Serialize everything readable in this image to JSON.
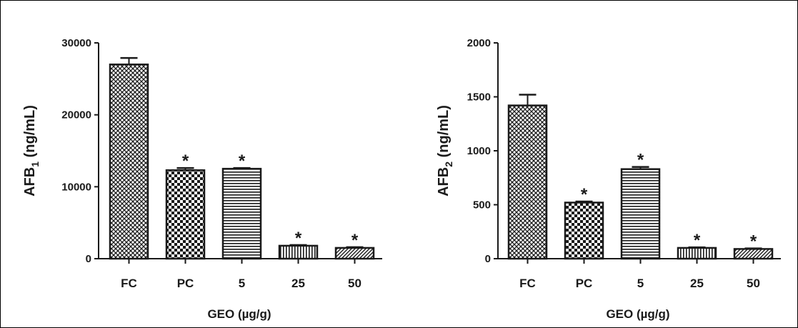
{
  "chart_data": [
    {
      "type": "bar",
      "categories": [
        "FC",
        "PC",
        "5",
        "25",
        "50"
      ],
      "values": [
        27000,
        12300,
        12500,
        1800,
        1500
      ],
      "errors": [
        900,
        300,
        100,
        100,
        100
      ],
      "significant": [
        false,
        true,
        true,
        true,
        true
      ],
      "significance_marker": "*",
      "patterns": [
        "crosshatch",
        "checker",
        "horizontal",
        "vertical",
        "diagonal"
      ],
      "title": "",
      "xlabel": "GEO (µg/g)",
      "ylabel_main": "AFB",
      "ylabel_sub": "1",
      "ylabel_unit": " (ng/mL)",
      "ylim": [
        0,
        30000
      ],
      "yticks": [
        0,
        10000,
        20000,
        30000
      ],
      "ytick_labels": [
        "0",
        "10000",
        "20000",
        "30000"
      ],
      "grid": false,
      "legend": "none"
    },
    {
      "type": "bar",
      "categories": [
        "FC",
        "PC",
        "5",
        "25",
        "50"
      ],
      "values": [
        1420,
        520,
        830,
        100,
        90
      ],
      "errors": [
        100,
        10,
        20,
        5,
        5
      ],
      "significant": [
        false,
        true,
        true,
        true,
        true
      ],
      "significance_marker": "*",
      "patterns": [
        "crosshatch",
        "checker",
        "horizontal",
        "vertical",
        "diagonal"
      ],
      "title": "",
      "xlabel": "GEO (µg/g)",
      "ylabel_main": "AFB",
      "ylabel_sub": "2",
      "ylabel_unit": " (ng/mL)",
      "ylim": [
        0,
        2000
      ],
      "yticks": [
        0,
        500,
        1000,
        1500,
        2000
      ],
      "ytick_labels": [
        "0",
        "500",
        "1000",
        "1500",
        "2000"
      ],
      "grid": false,
      "legend": "none"
    }
  ],
  "colors": {
    "ink": "#1a1a1a",
    "background": "#ffffff"
  }
}
